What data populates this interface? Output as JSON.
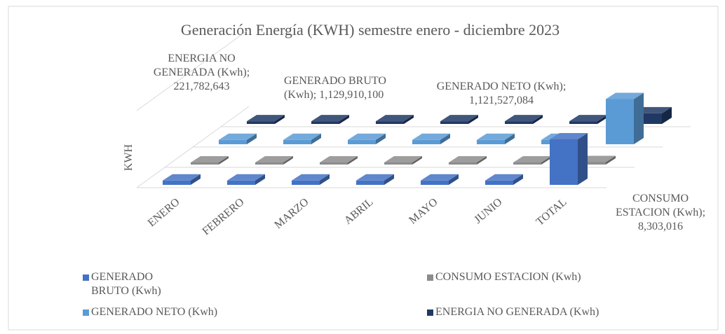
{
  "chart_data": {
    "type": "bar3d",
    "title": "Generación Energía (KWH) semestre enero - diciembre 2023",
    "y_label": "KWH",
    "categories": [
      "ENERO",
      "FEBRERO",
      "MARZO",
      "ABRIL",
      "MAYO",
      "JUNIO",
      "TOTAL"
    ],
    "series": [
      {
        "name": "GENERADO BRUTO (Kwh)",
        "color": "#4472c4",
        "values": [
          60000000,
          60000000,
          60000000,
          60000000,
          60000000,
          60000000,
          1129910100
        ],
        "value_labels": [
          null,
          null,
          null,
          null,
          null,
          null,
          "1,129,910,100"
        ]
      },
      {
        "name": "CONSUMO ESTACION (Kwh)",
        "color": "#8c8c8c",
        "values": [
          1000000,
          1000000,
          1000000,
          1000000,
          1000000,
          1000000,
          8303016
        ],
        "value_labels": [
          null,
          null,
          null,
          null,
          null,
          null,
          "8,303,016"
        ]
      },
      {
        "name": "GENERADO NETO (Kwh)",
        "color": "#5b9bd5",
        "values": [
          60000000,
          60000000,
          60000000,
          60000000,
          60000000,
          60000000,
          1121527084
        ],
        "value_labels": [
          null,
          null,
          null,
          null,
          null,
          null,
          "1,121,527,084"
        ]
      },
      {
        "name": "ENERGIA NO GENERADA (Kwh)",
        "color": "#203864",
        "values": [
          15000000,
          15000000,
          15000000,
          15000000,
          15000000,
          15000000,
          221782643
        ],
        "value_labels": [
          null,
          null,
          null,
          null,
          null,
          null,
          "221,782,643"
        ]
      }
    ]
  }
}
